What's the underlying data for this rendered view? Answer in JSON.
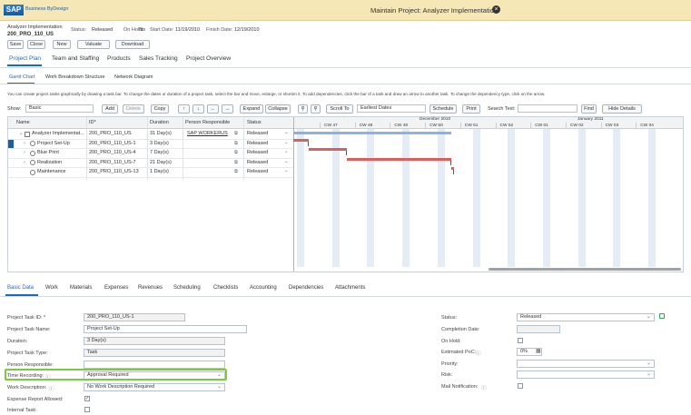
{
  "header": {
    "logo": "SAP",
    "logo_sub": "Business ByDesign",
    "title": "Maintain Project: Analyzer Implementation"
  },
  "object": {
    "name": "Analyzer Implementation",
    "id": "200_PRO_110_US",
    "fields": [
      {
        "label": "Status:",
        "value": "Released"
      },
      {
        "label": "On Hold:",
        "value": "No"
      },
      {
        "label": "Start Date:",
        "value": "11/19/2010"
      },
      {
        "label": "Finish Date:",
        "value": "12/19/2010"
      }
    ]
  },
  "buttons": [
    "Save",
    "Close",
    "New",
    "Valuate",
    "Download"
  ],
  "tabs": [
    "Project Plan",
    "Team and Staffing",
    "Products",
    "Sales Tracking",
    "Project Overview"
  ],
  "subtabs": [
    "Gantt Chart",
    "Work Breakdown Structure",
    "Network Diagram"
  ],
  "instructions": "You can create project tasks graphically by drawing a task bar. To change the dates or duration of a project task, select the bar and move, enlarge, or shorten it. To add dependencies, click the bar of a task and draw an arrow to another task. To change the dependency type, click on the arrow.",
  "toolbar": {
    "show_label": "Show:",
    "show_value": "Basic",
    "buttons": [
      "Add",
      "Delete",
      "Copy",
      "Expand",
      "Collapse"
    ],
    "scroll_to": "Scroll To",
    "dates": "Earliest Dates",
    "schedule": "Schedule",
    "print": "Print",
    "search_label": "Search Text:",
    "find": "Find",
    "hide_details": "Hide Details"
  },
  "gantt": {
    "months": [
      "December 2010",
      "January 2011"
    ],
    "weeks": [
      "CW 47",
      "CW 48",
      "CW 49",
      "CW 50",
      "CW 51",
      "CW 52",
      "CW 01",
      "CW 02",
      "CW 03",
      "CW 04"
    ]
  },
  "table": {
    "columns": [
      "Name",
      "ID*",
      "Duration",
      "Person Responsible",
      "Status"
    ],
    "rows": [
      {
        "name": "Analyzer Implementat...",
        "id": "200_PRO_110_US",
        "duration": "31 Day(s)",
        "person": "SAP WORKERUS",
        "status": "Released"
      },
      {
        "name": "Project Set-Up",
        "id": "200_PRO_110_US-1",
        "duration": "3 Day(s)",
        "status": "Released"
      },
      {
        "name": "Blue Print",
        "id": "200_PRO_110_US-4",
        "duration": "7 Day(s)",
        "status": "Released"
      },
      {
        "name": "Realization",
        "id": "200_PRO_110_US-7",
        "duration": "21 Day(s)",
        "status": "Released"
      },
      {
        "name": "Maintenance",
        "id": "200_PRO_110_US-13",
        "duration": "1 Day(s)",
        "status": "Released"
      }
    ]
  },
  "detail_tabs": [
    "Basic Data",
    "Work",
    "Materials",
    "Expenses",
    "Revenues",
    "Scheduling",
    "Checklists",
    "Accounting",
    "Dependencies",
    "Attachments"
  ],
  "form_left": [
    {
      "label": "Project Task ID: *",
      "value": "200_PRO_110_US-1"
    },
    {
      "label": "Project Task Name:",
      "value": "Project Set-Up"
    },
    {
      "label": "Duration:",
      "value": "3 Day(s)"
    },
    {
      "label": "Project Task Type:",
      "value": "Task"
    },
    {
      "label": "Person Responsible:"
    },
    {
      "label": "Time Recording:",
      "value": "Approval Required"
    },
    {
      "label": "Work Description:",
      "value": "No Work Description Required"
    },
    {
      "label": "Expense Report Allowed:",
      "checked": true
    },
    {
      "label": "Internal Task:",
      "checked": false
    }
  ],
  "form_right": [
    {
      "label": "Status:",
      "value": "Released"
    },
    {
      "label": "Completion Date:"
    },
    {
      "label": "On Hold:",
      "checked": false
    },
    {
      "label": "Estimated PoC:",
      "value": "0%"
    },
    {
      "label": "Priority:"
    },
    {
      "label": "Risk:"
    },
    {
      "label": "Mail Notification:",
      "checked": false
    }
  ]
}
